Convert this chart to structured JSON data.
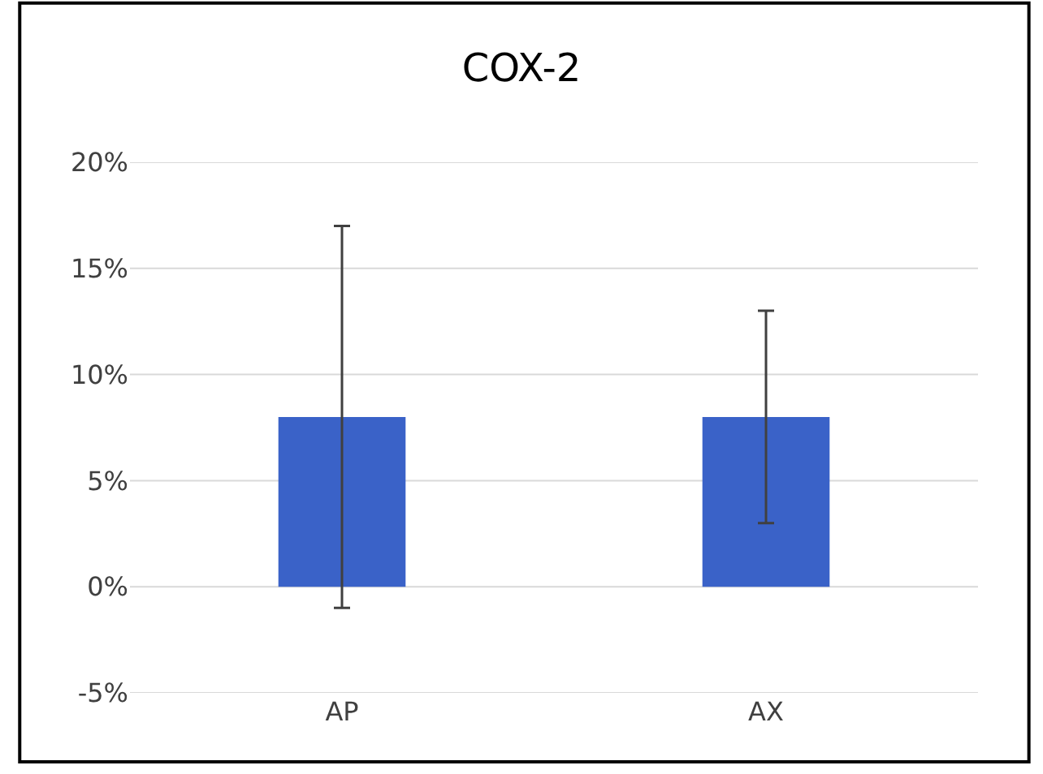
{
  "chart_data": {
    "type": "bar",
    "title": "COX-2",
    "categories": [
      "AP",
      "AX"
    ],
    "values": [
      8,
      8
    ],
    "errors": [
      9,
      5
    ],
    "color": "#3a62c8",
    "ylim": [
      -5,
      20
    ],
    "yticks": [
      {
        "value": -5,
        "label": "-5%"
      },
      {
        "value": 0,
        "label": "0%"
      },
      {
        "value": 5,
        "label": "5%"
      },
      {
        "value": 10,
        "label": "10%"
      },
      {
        "value": 15,
        "label": "15%"
      },
      {
        "value": 20,
        "label": "20%"
      }
    ],
    "grid": "y"
  }
}
